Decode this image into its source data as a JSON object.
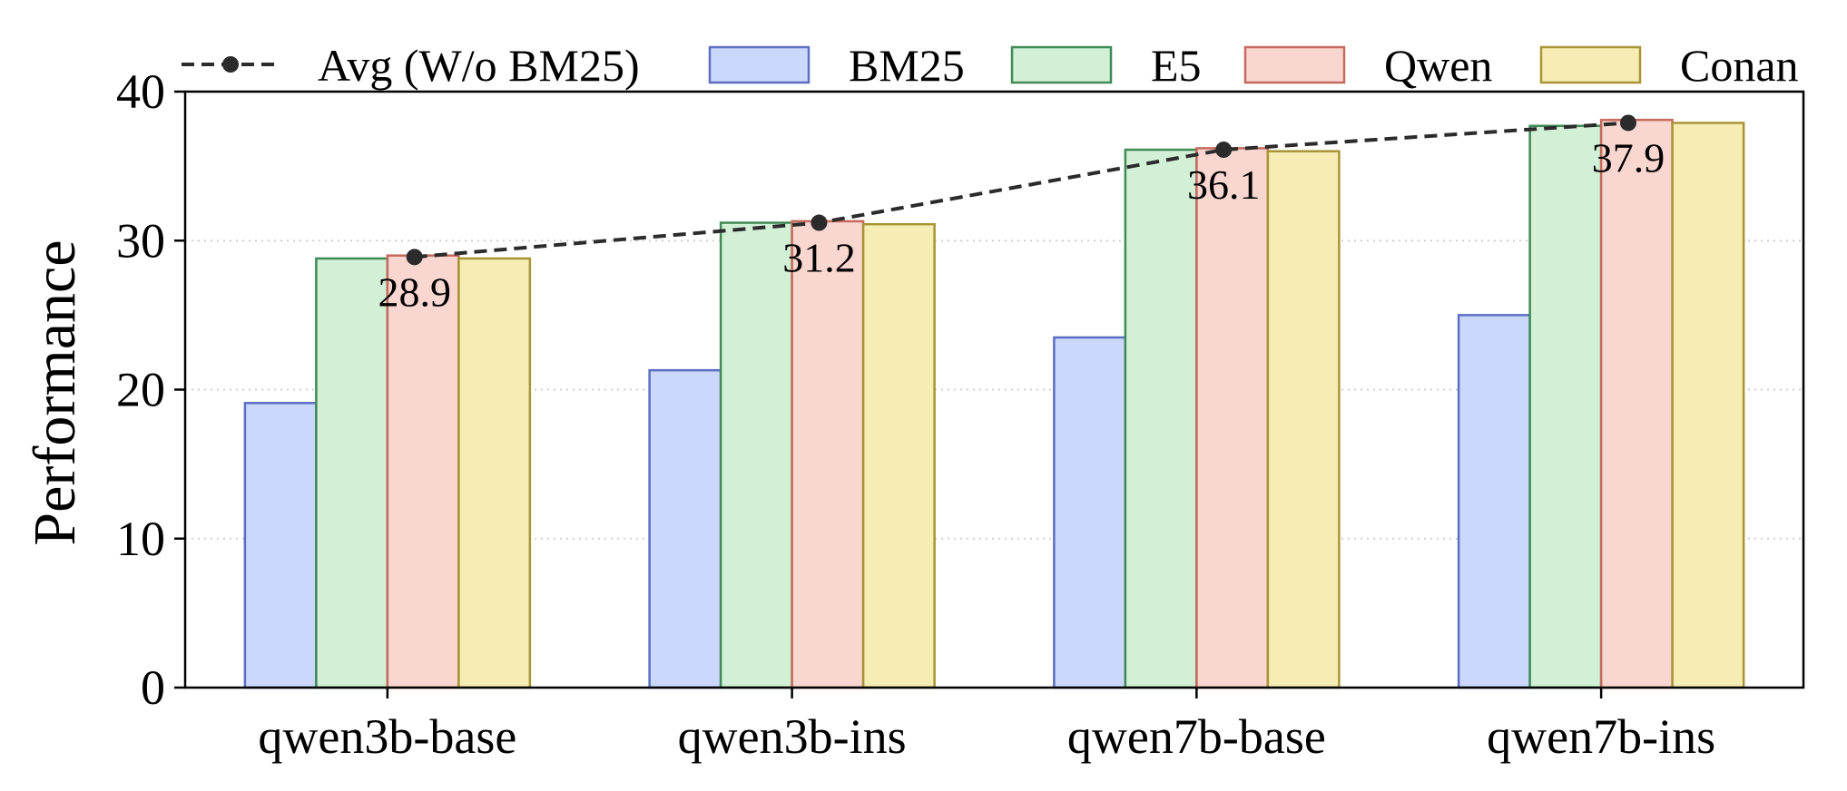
{
  "chart_data": {
    "type": "bar",
    "title": "",
    "xlabel": "",
    "ylabel": "Performance",
    "ylim": [
      0,
      40
    ],
    "yticks": [
      0,
      10,
      20,
      30,
      40
    ],
    "grid": "horizontal-dotted",
    "categories": [
      "qwen3b-base",
      "qwen3b-ins",
      "qwen7b-base",
      "qwen7b-ins"
    ],
    "series": [
      {
        "name": "BM25",
        "values": [
          19.1,
          21.3,
          23.5,
          25.0
        ],
        "fill": "#ccd8fb",
        "edge": "#5b6ec4"
      },
      {
        "name": "E5",
        "values": [
          28.8,
          31.2,
          36.1,
          37.7
        ],
        "fill": "#d2f0d6",
        "edge": "#3f8a55"
      },
      {
        "name": "Qwen",
        "values": [
          29.0,
          31.3,
          36.2,
          38.1
        ],
        "fill": "#f9d6d0",
        "edge": "#c56a5c"
      },
      {
        "name": "Conan",
        "values": [
          28.8,
          31.1,
          36.0,
          37.9
        ],
        "fill": "#f5edb4",
        "edge": "#a89535"
      }
    ],
    "line": {
      "name": "Avg (W/o BM25)",
      "values": [
        28.9,
        31.2,
        36.1,
        37.9
      ],
      "labels": [
        "28.9",
        "31.2",
        "36.1",
        "37.9"
      ],
      "color": "#2b2b2b"
    },
    "legend_position": "top"
  }
}
